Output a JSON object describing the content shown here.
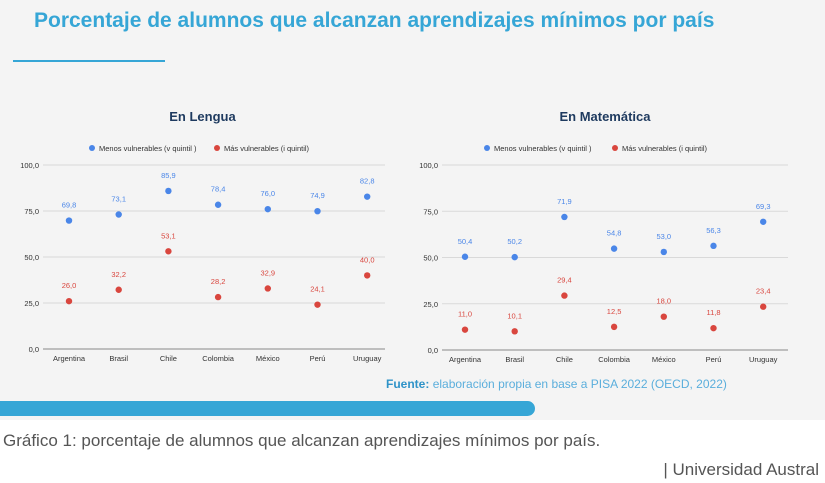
{
  "page": {
    "title": "Porcentaje de alumnos que alcanzan aprendizajes mínimos por país",
    "source_label": "Fuente:",
    "source_text": "elaboración propia en base a PISA 2022 (OECD, 2022)",
    "caption": "Gráfico 1: porcentaje de alumnos que alcanzan aprendizajes mínimos por país.",
    "credit": "| Universidad Austral"
  },
  "colors": {
    "accent": "#36a6d6",
    "series_blue": "#4a86e8",
    "series_red": "#d9463e"
  },
  "chart_data": [
    {
      "type": "scatter",
      "title": "En Lengua",
      "categories": [
        "Argentina",
        "Brasil",
        "Chile",
        "Colombia",
        "México",
        "Perú",
        "Uruguay"
      ],
      "series": [
        {
          "name": "Menos vulnerables (v quintil )",
          "color": "#4a86e8",
          "values": [
            69.8,
            73.1,
            85.9,
            78.4,
            76.0,
            74.9,
            82.8
          ],
          "labels": [
            "69,8",
            "73,1",
            "85,9",
            "78,4",
            "76,0",
            "74,9",
            "82,8"
          ]
        },
        {
          "name": "Más vulnerables (i quintil)",
          "color": "#d9463e",
          "values": [
            26.0,
            32.2,
            53.1,
            28.2,
            32.9,
            24.1,
            40.0
          ],
          "labels": [
            "26,0",
            "32,2",
            "53,1",
            "28,2",
            "32,9",
            "24,1",
            "40,0"
          ]
        }
      ],
      "ylim": [
        0,
        100
      ],
      "yticks": [
        0,
        25,
        50,
        75,
        100
      ],
      "ytick_labels": [
        "0,0",
        "25,0",
        "50,0",
        "75,0",
        "100,0"
      ],
      "grid": true,
      "legend": "top"
    },
    {
      "type": "scatter",
      "title": "En Matemática",
      "categories": [
        "Argentina",
        "Brasil",
        "Chile",
        "Colombia",
        "México",
        "Perú",
        "Uruguay"
      ],
      "series": [
        {
          "name": "Menos vulnerables (v quintil )",
          "color": "#4a86e8",
          "values": [
            50.4,
            50.2,
            71.9,
            54.8,
            53.0,
            56.3,
            69.3
          ],
          "labels": [
            "50,4",
            "50,2",
            "71,9",
            "54,8",
            "53,0",
            "56,3",
            "69,3"
          ]
        },
        {
          "name": "Más vulnerables (i quintil)",
          "color": "#d9463e",
          "values": [
            11.0,
            10.1,
            29.4,
            12.5,
            18.0,
            11.8,
            23.4
          ],
          "labels": [
            "11,0",
            "10,1",
            "29,4",
            "12,5",
            "18,0",
            "11,8",
            "23,4"
          ]
        }
      ],
      "ylim": [
        0,
        100
      ],
      "yticks": [
        0,
        25,
        50,
        75,
        100
      ],
      "ytick_labels": [
        "0,0",
        "25,0",
        "50,0",
        "75,0",
        "100,0"
      ],
      "grid": true,
      "legend": "top"
    }
  ]
}
